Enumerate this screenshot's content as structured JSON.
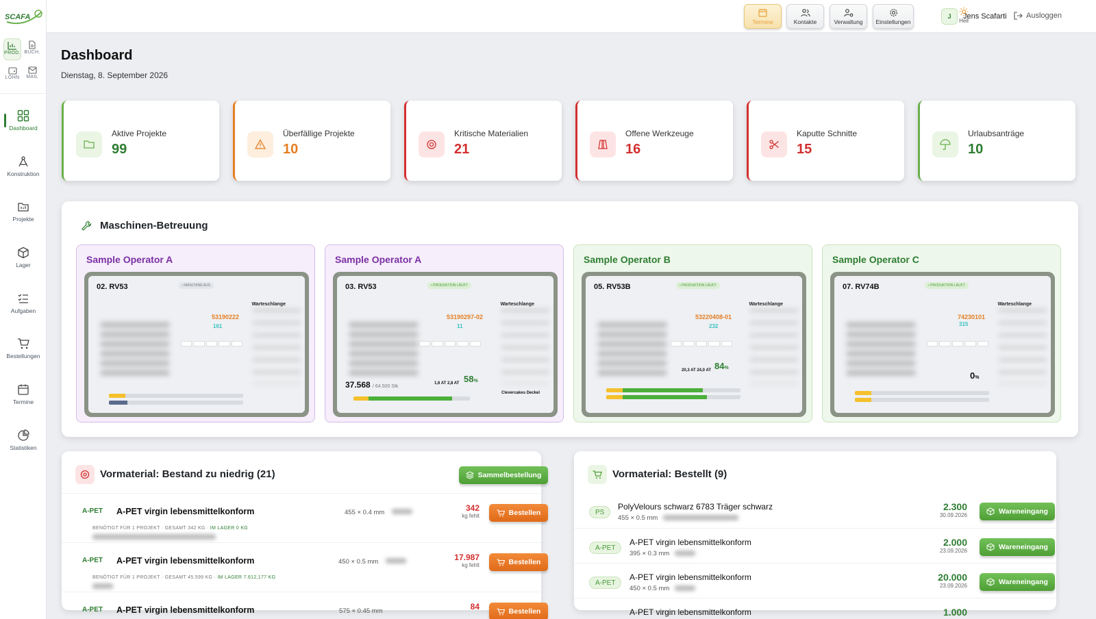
{
  "app": {
    "logo_text": "SCAFA"
  },
  "modules": [
    {
      "label": "PROD.",
      "icon": "chart-icon"
    },
    {
      "label": "BUCH.",
      "icon": "document-icon"
    },
    {
      "label": "LOHN",
      "icon": "wallet-icon"
    },
    {
      "label": "MAIL",
      "icon": "mail-icon"
    }
  ],
  "sidebar": {
    "items": [
      {
        "label": "Dashboard",
        "icon": "grid-icon"
      },
      {
        "label": "Konstruktion",
        "icon": "compass-icon"
      },
      {
        "label": "Projekte",
        "icon": "folder-icon"
      },
      {
        "label": "Lager",
        "icon": "box-icon"
      },
      {
        "label": "Aufgaben",
        "icon": "checklist-icon"
      },
      {
        "label": "Bestellungen",
        "icon": "cart-icon"
      },
      {
        "label": "Termine",
        "icon": "calendar-icon"
      },
      {
        "label": "Statistiken",
        "icon": "pie-icon"
      }
    ]
  },
  "topbar": {
    "buttons": [
      {
        "label": "Termine",
        "icon": "calendar-icon"
      },
      {
        "label": "Kontakte",
        "icon": "users-icon"
      },
      {
        "label": "Verwaltung",
        "icon": "user-gear-icon"
      },
      {
        "label": "Einstellungen",
        "icon": "gear-icon"
      }
    ],
    "theme_label": "Hell",
    "user_initial": "J",
    "user_name": "Jens Scafarti",
    "logout_label": "Ausloggen"
  },
  "page": {
    "title": "Dashboard",
    "date": "Dienstag, 8. September 2026"
  },
  "stats": [
    {
      "label": "Aktive Projekte",
      "value": "99",
      "color": "#2e7d32",
      "icon": "folder-icon"
    },
    {
      "label": "Überfällige Projekte",
      "value": "10",
      "color": "#e67e22",
      "icon": "warning-icon"
    },
    {
      "label": "Kritische Materialien",
      "value": "21",
      "color": "#d32f2f",
      "icon": "target-icon"
    },
    {
      "label": "Offene Werkzeuge",
      "value": "16",
      "color": "#d32f2f",
      "icon": "tool-icon"
    },
    {
      "label": "Kaputte Schnitte",
      "value": "15",
      "color": "#d32f2f",
      "icon": "scissors-icon"
    },
    {
      "label": "Urlaubsanträge",
      "value": "10",
      "color": "#2e7d32",
      "icon": "umbrella-icon"
    }
  ],
  "machines": {
    "title": "Maschinen-Betreuung",
    "operators": [
      {
        "name": "Sample Operator A",
        "machine": "02. RV53",
        "status": "• MASCHINE AUS",
        "queue_label": "Warteschlange",
        "article": "53190222",
        "count": "161",
        "big": "",
        "percent": ""
      },
      {
        "name": "Sample Operator A",
        "machine": "03. RV53",
        "status": "• PRODUKTION LÄUFT",
        "queue_label": "Warteschlange",
        "article": "53190297-02",
        "count": "11",
        "big": "37.568",
        "big_sub": "/ 64.500 Stk",
        "percent": "58",
        "mini": "1,6 AT   2,8 AT",
        "extra": "Clevercakes Deckel"
      },
      {
        "name": "Sample Operator B",
        "machine": "05. RV53B",
        "status": "• PRODUKTION LÄUFT",
        "queue_label": "Warteschlange",
        "article": "53220408-01",
        "count": "232",
        "big": "",
        "percent": "84",
        "mini": "20,3 AT   24,0 AT"
      },
      {
        "name": "Sample Operator C",
        "machine": "07. RV74B",
        "status": "• PRODUKTION LÄUFT",
        "queue_label": "Warteschlange",
        "article": "74230101",
        "count": "315",
        "big": "",
        "percent": "0"
      }
    ]
  },
  "low_stock": {
    "title": "Vormaterial: Bestand zu niedrig (21)",
    "bulk_button": "Sammelbestellung",
    "order_label": "Bestellen",
    "items": [
      {
        "tag": "A-PET",
        "name": "A-PET virgin lebensmittelkonform",
        "dim": "455 × 0.4 mm",
        "missing": "342",
        "unit": "kg fehlt",
        "info": "BENÖTIGT FÜR 1 PROJEKT · GESAMT 342 KG · ",
        "stock": "IM LAGER 0 KG"
      },
      {
        "tag": "A-PET",
        "name": "A-PET virgin lebensmittelkonform",
        "dim": "450 × 0.5 mm",
        "missing": "17.987",
        "unit": "kg fehlt",
        "info": "BENÖTIGT FÜR 1 PROJEKT · GESAMT 45.599 KG · ",
        "stock": "IM LAGER 7.612,177 KG"
      },
      {
        "tag": "A-PET",
        "name": "A-PET virgin lebensmittelkonform",
        "dim": "575 × 0.45 mm",
        "missing": "84",
        "unit": "kg fehlt",
        "info": "",
        "stock": ""
      }
    ]
  },
  "ordered": {
    "title": "Vormaterial: Bestellt (9)",
    "receive_label": "Wareneingang",
    "items": [
      {
        "tag": "PS",
        "name": "PolyVelours schwarz 6783 Träger schwarz",
        "dim": "455 × 0.5 mm",
        "qty": "2.300",
        "date": "30.09.2026"
      },
      {
        "tag": "A-PET",
        "name": "A-PET virgin lebensmittelkonform",
        "dim": "395 × 0.3 mm",
        "qty": "2.000",
        "date": "23.09.2026"
      },
      {
        "tag": "A-PET",
        "name": "A-PET virgin lebensmittelkonform",
        "dim": "450 × 0.5 mm",
        "qty": "20.000",
        "date": "23.09.2026"
      },
      {
        "tag": "",
        "name": "A-PET virgin lebensmittelkonform",
        "dim": "",
        "qty": "1.000",
        "date": ""
      }
    ]
  }
}
